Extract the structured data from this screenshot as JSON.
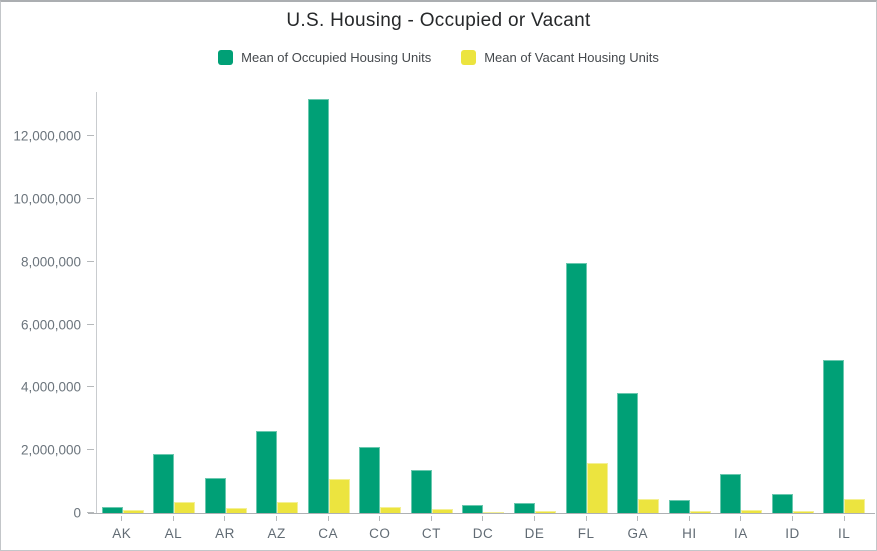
{
  "title": "U.S. Housing - Occupied or Vacant",
  "colors": {
    "occupied": "#00a076",
    "vacant": "#ece43f",
    "axis_line": "#c9cccf",
    "zero_line": "#aeb1b4",
    "tick": "#b6b9bb",
    "axis_text": "#6b747c",
    "title_text": "#26282a",
    "legend_text": "#45494d"
  },
  "legend": {
    "items": [
      {
        "label": "Mean of Occupied Housing Units",
        "series": "occupied"
      },
      {
        "label": "Mean of Vacant Housing Units",
        "series": "vacant"
      }
    ]
  },
  "chart_data": {
    "type": "bar",
    "title": "U.S. Housing - Occupied or Vacant",
    "xlabel": "",
    "ylabel": "",
    "grid": false,
    "legend_position": "top",
    "ylim": [
      0,
      13400000
    ],
    "yticks": [
      0,
      2000000,
      4000000,
      6000000,
      8000000,
      10000000,
      12000000
    ],
    "ytick_labels": [
      "0",
      "2,000,000",
      "4,000,000",
      "6,000,000",
      "8,000,000",
      "10,000,000",
      "12,000,000"
    ],
    "categories": [
      "AK",
      "AL",
      "AR",
      "AZ",
      "CA",
      "CO",
      "CT",
      "DC",
      "DE",
      "FL",
      "GA",
      "HI",
      "IA",
      "ID",
      "IL"
    ],
    "series": [
      {
        "name": "Mean of Occupied Housing Units",
        "color": "#00a076",
        "values": [
          200000,
          1870000,
          1120000,
          2600000,
          13170000,
          2110000,
          1360000,
          250000,
          330000,
          7950000,
          3810000,
          430000,
          1240000,
          620000,
          4870000
        ]
      },
      {
        "name": "Mean of Vacant Housing Units",
        "color": "#ece43f",
        "values": [
          100000,
          350000,
          160000,
          360000,
          1070000,
          200000,
          120000,
          40000,
          70000,
          1600000,
          460000,
          50000,
          100000,
          50000,
          440000
        ]
      }
    ]
  }
}
